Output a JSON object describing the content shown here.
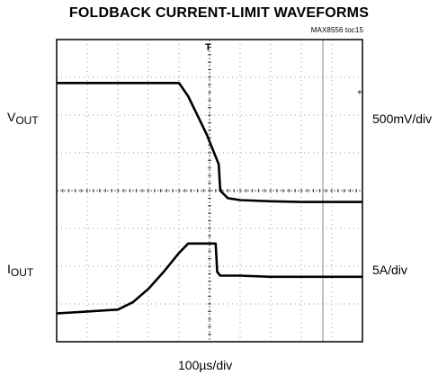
{
  "title": "FOLDBACK CURRENT-LIMIT WAVEFORMS",
  "part_tag": "MAX8556 toc15",
  "labels": {
    "vout_main": "V",
    "vout_sub": "OUT",
    "iout_main": "I",
    "iout_sub": "OUT",
    "vout_scale": "500mV/div",
    "iout_scale": "5A/div",
    "time_scale": "100µs/div"
  },
  "colors": {
    "trace": "#000000",
    "border": "#000000",
    "grid": "#9a9a9a",
    "background": "#ffffff"
  },
  "chart_data": {
    "type": "line",
    "x_divisions": 10,
    "y_divisions": 8,
    "x_unit": "µs",
    "x_scale_per_div": 100,
    "grid": true,
    "trigger_marker": "T",
    "series": [
      {
        "name": "VOUT",
        "scale": "500mV/div",
        "x": [
          0.0,
          1.0,
          2.0,
          3.0,
          4.0,
          4.3,
          4.6,
          4.9,
          5.15,
          5.3,
          5.35,
          5.6,
          6.0,
          7.0,
          8.0,
          9.0,
          10.0
        ],
        "y": [
          6.85,
          6.85,
          6.85,
          6.85,
          6.85,
          6.5,
          6.0,
          5.5,
          5.0,
          4.7,
          4.0,
          3.8,
          3.75,
          3.72,
          3.7,
          3.7,
          3.7
        ]
      },
      {
        "name": "IOUT",
        "scale": "5A/div",
        "x": [
          0.0,
          1.0,
          2.0,
          2.5,
          3.0,
          3.5,
          4.0,
          4.3,
          4.5,
          5.0,
          5.2,
          5.25,
          5.35,
          6.0,
          7.0,
          8.0,
          9.0,
          10.0
        ],
        "y": [
          0.75,
          0.8,
          0.85,
          1.05,
          1.4,
          1.85,
          2.35,
          2.6,
          2.6,
          2.6,
          2.6,
          1.85,
          1.75,
          1.75,
          1.72,
          1.72,
          1.72,
          1.72
        ]
      }
    ]
  }
}
